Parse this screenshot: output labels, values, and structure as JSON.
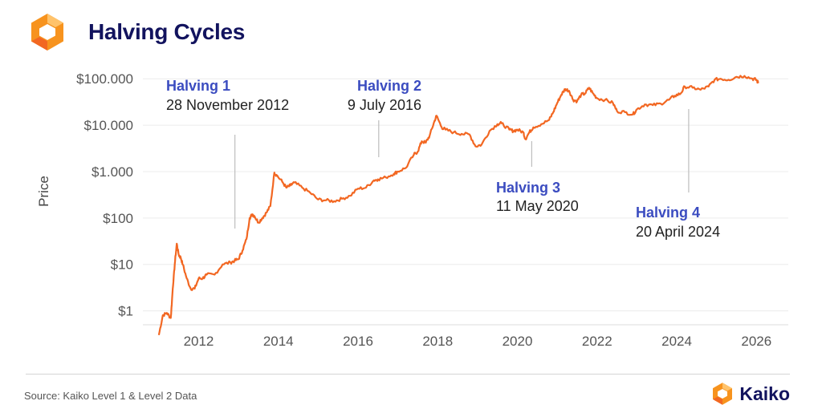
{
  "header": {
    "title": "Halving Cycles",
    "logo_icon": "kaiko-hexagon-logo",
    "logo_colors": [
      "#f7931e",
      "#f26722",
      "#ffc36b"
    ]
  },
  "chart_data": {
    "type": "line",
    "title": "Halving Cycles",
    "xlabel": "",
    "ylabel": "Price",
    "y_scale": "log",
    "ylim": [
      0.5,
      150000
    ],
    "xlim": [
      2010.6,
      2026.8
    ],
    "x_ticks": [
      2012,
      2014,
      2016,
      2018,
      2020,
      2022,
      2024,
      2026
    ],
    "x_tick_labels": [
      "2012",
      "2014",
      "2016",
      "2018",
      "2020",
      "2022",
      "2024",
      "2026"
    ],
    "y_ticks": [
      1,
      10,
      100,
      1000,
      10000,
      100000
    ],
    "y_tick_labels": [
      "$1",
      "$10",
      "$100",
      "$1.000",
      "$10.000",
      "$100.000"
    ],
    "grid": "horizontal",
    "line_color": "#f26722",
    "series": [
      {
        "x": [
          2011.0,
          2011.1,
          2011.2,
          2011.3,
          2011.35,
          2011.4,
          2011.45,
          2011.5,
          2011.55,
          2011.6,
          2011.7,
          2011.8,
          2011.9,
          2012.0,
          2012.1,
          2012.2,
          2012.4,
          2012.6,
          2012.8,
          2012.9,
          2013.0,
          2013.1,
          2013.2,
          2013.28,
          2013.35,
          2013.4,
          2013.5,
          2013.6,
          2013.7,
          2013.8,
          2013.9,
          2013.95,
          2014.1,
          2014.2,
          2014.3,
          2014.4,
          2014.6,
          2014.8,
          2015.0,
          2015.2,
          2015.4,
          2015.6,
          2015.8,
          2016.0,
          2016.2,
          2016.4,
          2016.5,
          2016.7,
          2016.9,
          2017.0,
          2017.2,
          2017.4,
          2017.5,
          2017.6,
          2017.7,
          2017.8,
          2017.9,
          2017.97,
          2018.1,
          2018.2,
          2018.4,
          2018.6,
          2018.8,
          2018.95,
          2019.1,
          2019.3,
          2019.5,
          2019.6,
          2019.8,
          2019.9,
          2020.0,
          2020.15,
          2020.2,
          2020.3,
          2020.4,
          2020.6,
          2020.8,
          2020.9,
          2021.0,
          2021.1,
          2021.2,
          2021.3,
          2021.4,
          2021.5,
          2021.6,
          2021.7,
          2021.8,
          2021.9,
          2022.0,
          2022.2,
          2022.4,
          2022.5,
          2022.7,
          2022.9,
          2023.0,
          2023.2,
          2023.4,
          2023.6,
          2023.8,
          2023.95,
          2024.1,
          2024.2,
          2024.4,
          2024.6,
          2024.8,
          2024.95,
          2025.1,
          2025.3,
          2025.5,
          2025.7,
          2025.9,
          2026.0,
          2026.05
        ],
        "values": [
          0.3,
          0.8,
          0.9,
          0.7,
          3,
          10,
          28,
          16,
          14,
          10,
          5,
          3,
          3,
          5,
          5,
          6,
          6,
          10,
          11,
          12,
          13,
          20,
          35,
          100,
          120,
          110,
          80,
          100,
          130,
          180,
          950,
          850,
          600,
          450,
          500,
          580,
          450,
          350,
          250,
          240,
          230,
          260,
          300,
          430,
          450,
          650,
          680,
          750,
          900,
          1000,
          1200,
          2300,
          2700,
          4500,
          4200,
          6000,
          11000,
          16000,
          9000,
          8000,
          7000,
          6500,
          6300,
          3500,
          3800,
          7500,
          10500,
          11000,
          8000,
          7500,
          8000,
          7000,
          5000,
          7000,
          9000,
          10500,
          13000,
          19000,
          30000,
          45000,
          60000,
          55000,
          35000,
          33000,
          45000,
          48000,
          64000,
          48000,
          38000,
          35000,
          30000,
          20000,
          19000,
          17000,
          22000,
          28000,
          27000,
          29000,
          35000,
          43000,
          48000,
          68000,
          64000,
          58000,
          68000,
          95000,
          100000,
          95000,
          110000,
          115000,
          100000,
          95000,
          80000
        ]
      }
    ],
    "annotations": [
      {
        "title": "Halving 1",
        "date": "28 November 2012",
        "x": 2012.91,
        "y": 12
      },
      {
        "title": "Halving 2",
        "date": "9 July 2016",
        "x": 2016.52,
        "y": 650
      },
      {
        "title": "Halving 3",
        "date": "11 May 2020",
        "x": 2020.36,
        "y": 8600
      },
      {
        "title": "Halving 4",
        "date": "20 April 2024",
        "x": 2024.3,
        "y": 64000
      }
    ],
    "annotation_title_color": "#3b4cc0",
    "annotation_text_color": "#222222"
  },
  "footer": {
    "source": "Source: Kaiko Level 1 & Level 2 Data",
    "brand": "Kaiko",
    "brand_icon": "kaiko-hexagon-logo"
  }
}
